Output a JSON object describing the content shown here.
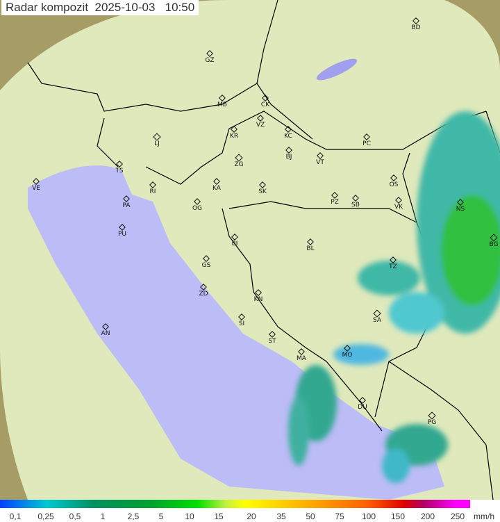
{
  "title": "Radar kompozit  2025-10-03   10:50",
  "colors": {
    "sea": "#bcbcf6",
    "land": "#dfe9bc",
    "outside": "#a59c66",
    "border": "#000000"
  },
  "stations": [
    "GZ",
    "BD",
    "MB",
    "CK",
    "VZ",
    "KR",
    "KC",
    "PC",
    "LJ",
    "ZG",
    "BJ",
    "VT",
    "TS",
    "VE",
    "RI",
    "KA",
    "SK",
    "OS",
    "PA",
    "OG",
    "PZ",
    "SB",
    "VK",
    "NS",
    "BG",
    "PU",
    "BI",
    "BL",
    "TZ",
    "GS",
    "ZD",
    "KN",
    "SA",
    "SI",
    "AN",
    "ST",
    "MO",
    "MA",
    "DU",
    "PG"
  ],
  "legend": {
    "ticks": [
      "0,1",
      "0,25",
      "0,5",
      "1",
      "2,5",
      "5",
      "10",
      "15",
      "20",
      "35",
      "50",
      "75",
      "100",
      "150",
      "200",
      "250"
    ],
    "unit": "mm/h"
  }
}
